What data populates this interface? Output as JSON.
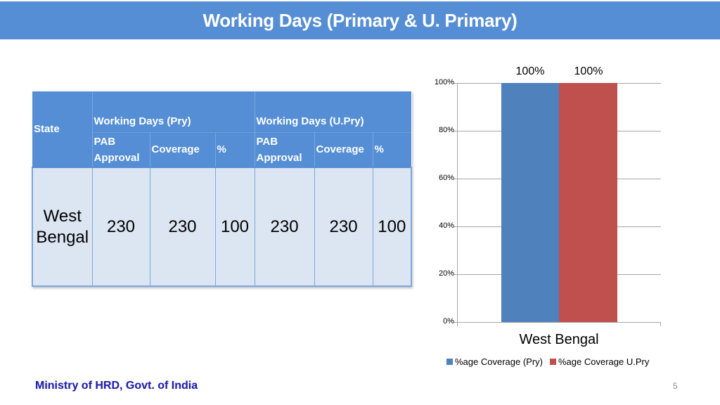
{
  "header": {
    "title": "Working Days (Primary & U. Primary)"
  },
  "table": {
    "state_header": "State",
    "groups": [
      {
        "label": "Working Days (Pry)",
        "sub": [
          "PAB Approval",
          "Coverage",
          "%"
        ]
      },
      {
        "label": "Working Days (U.Pry)",
        "sub": [
          "PAB Approval",
          "Coverage",
          "%"
        ]
      }
    ],
    "rows": [
      {
        "state": "West Bengal",
        "values": [
          "230",
          "230",
          "100",
          "230",
          "230",
          "100"
        ]
      }
    ]
  },
  "chart_data": {
    "type": "bar",
    "title": "",
    "categories": [
      "West Bengal"
    ],
    "series": [
      {
        "name": "%age Coverage (Pry)",
        "values": [
          100
        ],
        "color": "#4f81bd",
        "label": "100%"
      },
      {
        "name": "%age Coverage U.Pry",
        "values": [
          100
        ],
        "color": "#c0504d",
        "label": "100%"
      }
    ],
    "xlabel": "",
    "ylabel": "",
    "ylim": [
      0,
      100
    ],
    "yticks": [
      "0%",
      "20%",
      "40%",
      "60%",
      "80%",
      "100%"
    ],
    "grid": true,
    "legend_position": "bottom"
  },
  "footer": {
    "text": "Ministry of HRD, Govt. of India",
    "page_number": "5"
  }
}
